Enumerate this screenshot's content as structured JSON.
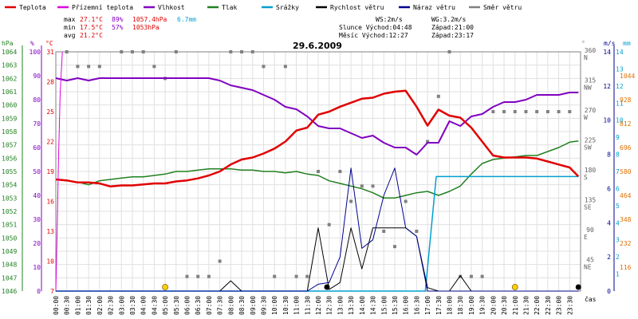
{
  "legend": [
    {
      "label": "Teplota",
      "color": "#e00000"
    },
    {
      "label": "Přízemní teplota",
      "color": "#e000e0"
    },
    {
      "label": "Vlhkost",
      "color": "#8000c0"
    },
    {
      "label": "Tlak",
      "color": "#208020"
    },
    {
      "label": "Srážky",
      "color": "#00a0d0"
    },
    {
      "label": "Rychlost větru",
      "color": "#000000"
    },
    {
      "label": "Náraz větru",
      "color": "#000090"
    },
    {
      "label": "Směr větru",
      "color": "#808080"
    }
  ],
  "stats": {
    "max": {
      "label": "max",
      "temp": "27.1°C",
      "hum": "89%",
      "press": "1057.4hPa",
      "rain": "6.7mm"
    },
    "min": {
      "label": "min",
      "temp": "17.5°C",
      "hum": "57%",
      "press": "1053hPa"
    },
    "avg": {
      "label": "avg",
      "temp": "21.2°C"
    }
  },
  "info": {
    "ws": "WS:2m/s",
    "wg": "WG:3.2m/s",
    "sun": "Slunce Východ:04:48",
    "sunset": "Západ:21:00",
    "moon": "Měsíc  Východ:12:27",
    "moonset": "Západ:23:17"
  },
  "chart_data": {
    "type": "line",
    "title": "29.6.2009",
    "xlabel": "čas",
    "x_ticks": [
      "00:00",
      "00:30",
      "01:00",
      "01:30",
      "02:00",
      "02:30",
      "03:00",
      "03:30",
      "04:00",
      "04:30",
      "05:00",
      "05:30",
      "06:00",
      "06:30",
      "07:00",
      "07:30",
      "08:00",
      "08:30",
      "09:00",
      "09:30",
      "10:00",
      "10:30",
      "11:00",
      "11:30",
      "12:00",
      "12:30",
      "13:00",
      "13:30",
      "14:00",
      "14:30",
      "15:00",
      "15:30",
      "16:00",
      "16:30",
      "17:00",
      "17:30",
      "18:00",
      "18:30",
      "19:00",
      "19:30",
      "20:00",
      "20:30",
      "21:00",
      "21:30",
      "22:00",
      "22:30",
      "23:00",
      "23:30"
    ],
    "axes": {
      "hpa": {
        "label": "hPa",
        "color": "#208020",
        "min": 1046,
        "max": 1064,
        "step": 1
      },
      "pct": {
        "label": "%",
        "color": "#8000c0",
        "min": 0,
        "max": 100,
        "step": 10
      },
      "degc": {
        "label": "°C",
        "color": "#e00000",
        "min": 7,
        "max": 31,
        "step": 3
      },
      "deg": {
        "label": "°",
        "color": "#808080",
        "ticks": [
          {
            "v": 0,
            "t": ""
          },
          {
            "v": 45,
            "t": "45 NE"
          },
          {
            "v": 90,
            "t": "90 E"
          },
          {
            "v": 135,
            "t": "135 SE"
          },
          {
            "v": 180,
            "t": "180 S"
          },
          {
            "v": 225,
            "t": "225 SW"
          },
          {
            "v": 270,
            "t": "270 W"
          },
          {
            "v": 315,
            "t": "315 NW"
          },
          {
            "v": 360,
            "t": "360 N"
          }
        ]
      },
      "ms": {
        "label": "m/s",
        "color": "#000090",
        "min": 0,
        "max": 14,
        "step": 2
      },
      "mm": {
        "label": "mm",
        "color": "#e07000",
        "ticks": [
          "116",
          "232",
          "348",
          "464",
          "580",
          "696",
          "812",
          "928",
          "1044"
        ],
        "cyan_ticks": [
          "1",
          "2",
          "3",
          "4",
          "5",
          "6",
          "7",
          "8",
          "9",
          "10",
          "11",
          "12",
          "13",
          "14"
        ]
      }
    },
    "series": [
      {
        "name": "Teplota",
        "axis": "degc",
        "color": "#e00000",
        "width": 2.5,
        "x": [
          0,
          0.5,
          1,
          1.5,
          2,
          2.5,
          3,
          3.5,
          4,
          4.5,
          5,
          5.5,
          6,
          6.5,
          7,
          7.5,
          8,
          8.5,
          9,
          9.5,
          10,
          10.5,
          11,
          11.5,
          12,
          12.5,
          13,
          13.5,
          14,
          14.5,
          15,
          15.5,
          16,
          16.5,
          17,
          17.5,
          18,
          18.5,
          19,
          19.5,
          20,
          20.5,
          21,
          21.5,
          22,
          22.5,
          23,
          23.5,
          23.9
        ],
        "y": [
          18.2,
          18.1,
          17.9,
          17.9,
          17.8,
          17.5,
          17.6,
          17.6,
          17.7,
          17.8,
          17.8,
          18.0,
          18.1,
          18.3,
          18.6,
          19.0,
          19.7,
          20.2,
          20.4,
          20.8,
          21.3,
          22.0,
          23.1,
          23.4,
          24.7,
          25.0,
          25.5,
          25.9,
          26.3,
          26.4,
          26.8,
          27.0,
          27.1,
          25.5,
          23.6,
          25.2,
          24.6,
          24.4,
          23.4,
          22.0,
          20.6,
          20.4,
          20.4,
          20.4,
          20.3,
          20.0,
          19.7,
          19.4,
          18.5
        ]
      },
      {
        "name": "Přízemní teplota",
        "axis": "degc",
        "color": "#e000e0",
        "width": 1,
        "x": [
          0,
          0.05,
          0.12,
          0.2,
          0.3
        ],
        "y": [
          7,
          12,
          20,
          27,
          31
        ]
      },
      {
        "name": "Vlhkost",
        "axis": "pct",
        "color": "#8000c0",
        "width": 2,
        "x": [
          0,
          0.5,
          1,
          1.5,
          2,
          3,
          4,
          5,
          6,
          7,
          7.5,
          8,
          8.5,
          9,
          9.5,
          10,
          10.5,
          11,
          11.5,
          12,
          12.5,
          13,
          13.5,
          14,
          14.5,
          15,
          15.5,
          16,
          16.5,
          17,
          17.5,
          18,
          18.5,
          19,
          19.5,
          20,
          20.5,
          21,
          21.5,
          22,
          22.5,
          23,
          23.5,
          23.9
        ],
        "y": [
          89,
          88,
          89,
          88,
          89,
          89,
          89,
          89,
          89,
          89,
          88,
          86,
          85,
          84,
          82,
          80,
          77,
          76,
          73,
          69,
          68,
          68,
          66,
          64,
          65,
          62,
          60,
          60,
          57,
          62,
          62,
          71,
          69,
          73,
          74,
          77,
          79,
          79,
          80,
          82,
          82,
          82,
          83,
          83
        ]
      },
      {
        "name": "Tlak",
        "axis": "hpa",
        "color": "#208020",
        "width": 1.5,
        "x": [
          0,
          0.5,
          1,
          1.5,
          2,
          2.5,
          3,
          3.5,
          4,
          4.5,
          5,
          5.5,
          6,
          6.5,
          7,
          7.5,
          8,
          8.5,
          9,
          9.5,
          10,
          10.5,
          11,
          11.5,
          12,
          12.5,
          13,
          13.5,
          14,
          14.5,
          15,
          15.5,
          16,
          16.5,
          17,
          17.5,
          18,
          18.5,
          19,
          19.5,
          20,
          20.5,
          21,
          21.5,
          22,
          22.5,
          23,
          23.5,
          23.9
        ],
        "y": [
          1054.4,
          1054.3,
          1054.2,
          1054.0,
          1054.3,
          1054.4,
          1054.5,
          1054.6,
          1054.6,
          1054.7,
          1054.8,
          1055.0,
          1055.0,
          1055.1,
          1055.2,
          1055.2,
          1055.2,
          1055.1,
          1055.1,
          1055.0,
          1055.0,
          1054.9,
          1055.0,
          1054.8,
          1054.7,
          1054.3,
          1054.1,
          1053.9,
          1053.7,
          1053.4,
          1053.0,
          1053.0,
          1053.2,
          1053.4,
          1053.5,
          1053.2,
          1053.5,
          1053.9,
          1054.8,
          1055.6,
          1055.9,
          1056.0,
          1056.1,
          1056.2,
          1056.2,
          1056.5,
          1056.8,
          1057.2,
          1057.3
        ]
      },
      {
        "name": "Srážky",
        "axis": "mm",
        "color": "#00a0d0",
        "width": 1.5,
        "x": [
          0,
          16.9,
          17.4,
          17.5,
          23.9
        ],
        "y": [
          0,
          0,
          6.7,
          6.7,
          6.7
        ]
      },
      {
        "name": "Rychlost větru",
        "axis": "ms",
        "color": "#000000",
        "width": 1,
        "x": [
          0,
          7.5,
          8,
          8.5,
          11,
          11.5,
          12,
          12.5,
          13,
          13.5,
          14,
          14.5,
          15,
          15.5,
          16,
          16.5,
          17,
          17.5,
          18,
          18.5,
          19,
          23.9
        ],
        "y": [
          0,
          0,
          0.6,
          0,
          0,
          0,
          3.7,
          0.1,
          0.5,
          3.7,
          1.3,
          3.7,
          3.7,
          3.7,
          3.7,
          3.2,
          0.2,
          0,
          0,
          0.9,
          0,
          0
        ]
      },
      {
        "name": "Náraz větru",
        "axis": "ms",
        "color": "#000090",
        "width": 1,
        "x": [
          0,
          11.5,
          12,
          12.5,
          13,
          13.5,
          14,
          14.5,
          15,
          15.5,
          16,
          16.5,
          17,
          23.9
        ],
        "y": [
          0,
          0,
          0.4,
          0.5,
          2.0,
          7.2,
          2.5,
          3.0,
          5.6,
          7.2,
          3.7,
          3.2,
          0,
          0
        ]
      }
    ],
    "wind_dir": {
      "x": [
        0.5,
        1.0,
        1.5,
        2.0,
        3.0,
        3.5,
        4.0,
        4.5,
        5.0,
        5.5,
        6.0,
        6.5,
        7.0,
        7.5,
        8.0,
        8.5,
        9.0,
        9.5,
        10.0,
        10.5,
        11.0,
        11.5,
        12.0,
        12.5,
        13.0,
        13.5,
        14.0,
        14.5,
        15.0,
        15.5,
        16.0,
        16.5,
        17.0,
        17.5,
        18.0,
        18.5,
        19.0,
        19.5,
        20.0,
        20.5,
        21.0,
        21.5,
        22.0,
        22.5,
        23.0,
        23.5
      ],
      "y": [
        360,
        338,
        338,
        338,
        360,
        360,
        360,
        338,
        320,
        360,
        22,
        22,
        22,
        45,
        360,
        360,
        360,
        338,
        22,
        338,
        22,
        22,
        180,
        100,
        180,
        135,
        158,
        158,
        90,
        67,
        135,
        90,
        225,
        293,
        360,
        22,
        22,
        22,
        270,
        270,
        270,
        270,
        270,
        270,
        270,
        270
      ]
    },
    "markers": {
      "sun": [
        {
          "x": 5.0,
          "color": "#ffd000"
        },
        {
          "x": 21.0,
          "color": "#ffd000"
        }
      ],
      "moon": [
        {
          "x": 12.4,
          "color": "#000000"
        },
        {
          "x": 23.9,
          "color": "#000000"
        }
      ]
    }
  }
}
